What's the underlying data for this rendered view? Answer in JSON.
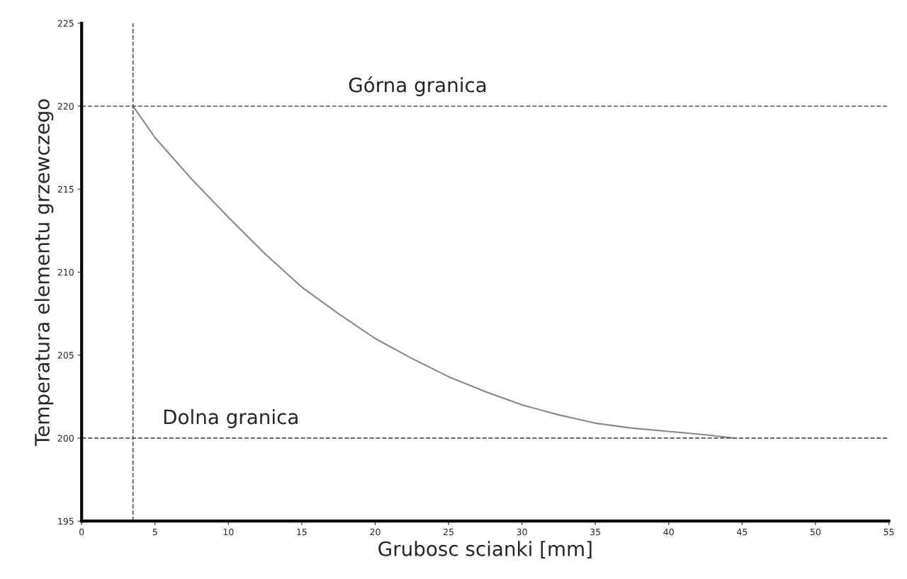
{
  "chart_data": {
    "type": "line",
    "xlabel": "Grubosc scianki [mm]",
    "ylabel": "Temperatura elementu grzewczego",
    "x": [
      3.5,
      5,
      7.5,
      10,
      12.5,
      15,
      17.5,
      20,
      22.5,
      25,
      27.5,
      30,
      32.5,
      35,
      37.5,
      40,
      42.5,
      44.5
    ],
    "series": [
      {
        "color": "#888888",
        "values": [
          220,
          218.1,
          215.6,
          213.3,
          211.1,
          209.1,
          207.5,
          206.0,
          204.8,
          203.7,
          202.8,
          202.0,
          201.4,
          200.9,
          200.6,
          200.4,
          200.2,
          200
        ]
      }
    ],
    "xlim": [
      0,
      55
    ],
    "ylim": [
      195,
      225
    ],
    "xticks": [
      0,
      5,
      10,
      15,
      20,
      25,
      30,
      35,
      40,
      45,
      50,
      55
    ],
    "yticks": [
      195,
      200,
      205,
      210,
      215,
      220,
      225
    ],
    "grid": false,
    "legend": false,
    "marker": "none",
    "line_style": "solid",
    "ref_lines": [
      {
        "axis": "y",
        "value": 220,
        "label": "Górna granica",
        "color": "#555555",
        "line_style": "dashed"
      },
      {
        "axis": "y",
        "value": 200,
        "label": "Dolna granica",
        "color": "#555555",
        "line_style": "dashed"
      },
      {
        "axis": "x",
        "value": 3.5,
        "color": "#555555",
        "line_style": "dashed"
      }
    ]
  }
}
